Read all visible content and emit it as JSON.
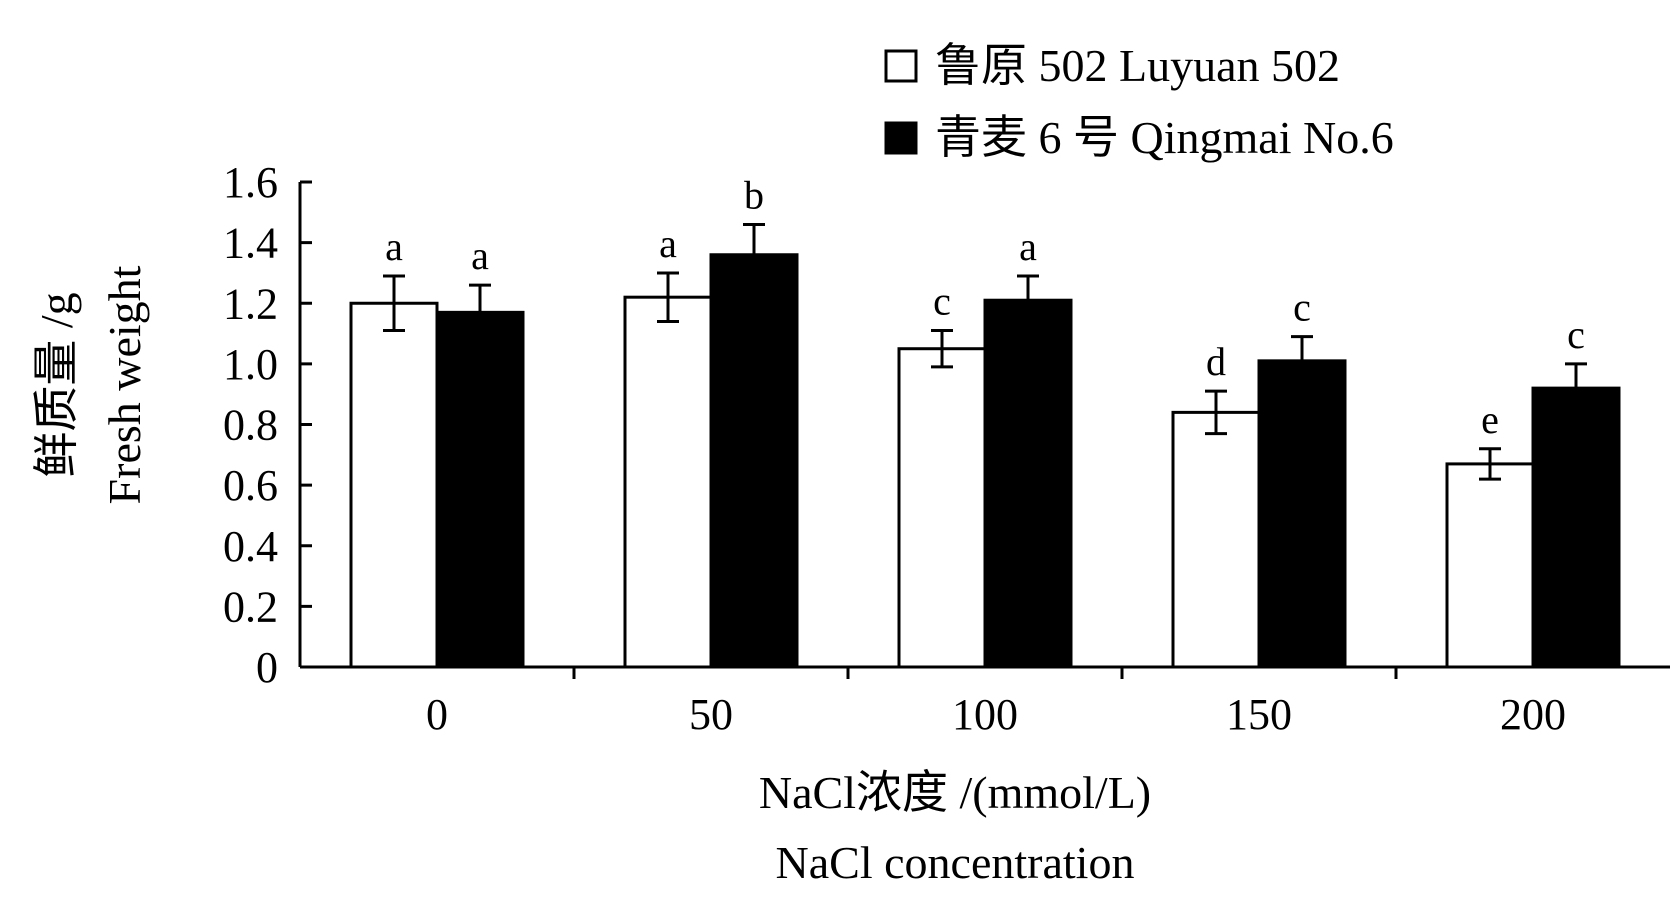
{
  "chart_data": {
    "type": "bar",
    "categories": [
      "0",
      "50",
      "100",
      "150",
      "200"
    ],
    "series": [
      {
        "name": "鲁原 502  Luyuan 502",
        "fill": "#ffffff",
        "values": [
          1.2,
          1.22,
          1.05,
          0.84,
          0.67
        ],
        "errors": [
          0.09,
          0.08,
          0.06,
          0.07,
          0.05
        ],
        "letters": [
          "a",
          "a",
          "c",
          "d",
          "e"
        ]
      },
      {
        "name": "青麦 6 号  Qingmai No.6",
        "fill": "#000000",
        "values": [
          1.17,
          1.36,
          1.21,
          1.01,
          0.92
        ],
        "errors": [
          0.09,
          0.1,
          0.08,
          0.08,
          0.08
        ],
        "letters": [
          "a",
          "b",
          "a",
          "c",
          "c"
        ]
      }
    ],
    "ylim": [
      0,
      1.6
    ],
    "yticks": [
      "0",
      "0.2",
      "0.4",
      "0.6",
      "0.8",
      "1.0",
      "1.2",
      "1.4",
      "1.6"
    ],
    "ylabel_cn": "鲜质量 /g",
    "ylabel_en": "Fresh weight",
    "xlabel_cn": "NaCl浓度 /(mmol/L)",
    "xlabel_en": "NaCl concentration",
    "legend_position": "top-right",
    "grid": false
  }
}
